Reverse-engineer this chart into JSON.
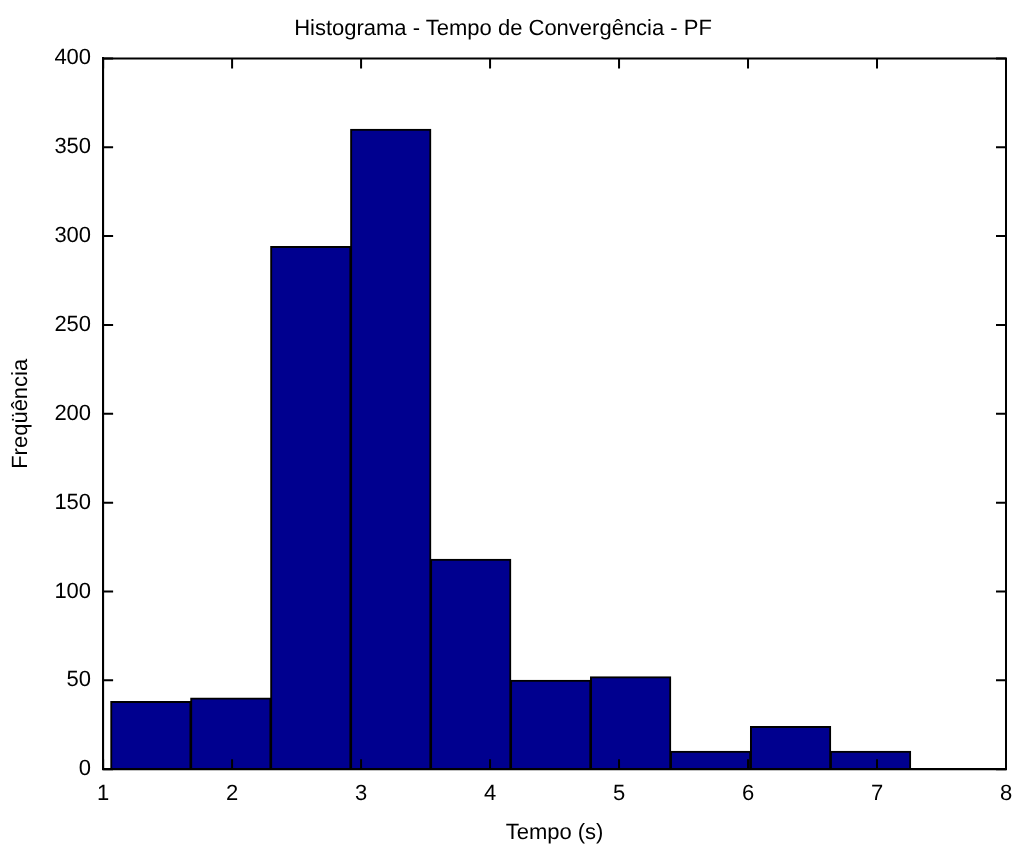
{
  "chart_data": {
    "type": "histogram",
    "title": "Histograma - Tempo de Convergência - PF",
    "xlabel": "Tempo (s)",
    "ylabel": "Freqüência",
    "bins": [
      1.06,
      1.68,
      2.3,
      2.92,
      3.54,
      4.16,
      4.78,
      5.4,
      6.02,
      6.64,
      7.26
    ],
    "values": [
      38,
      40,
      294,
      360,
      118,
      50,
      52,
      10,
      24,
      10
    ],
    "color": "#00008f",
    "xlim": [
      1,
      8
    ],
    "xticks": [
      1,
      2,
      3,
      4,
      5,
      6,
      7,
      8
    ],
    "ylim": [
      0,
      400
    ],
    "yticks": [
      0,
      50,
      100,
      150,
      200,
      250,
      300,
      350,
      400
    ],
    "grid": false,
    "legend": false
  }
}
